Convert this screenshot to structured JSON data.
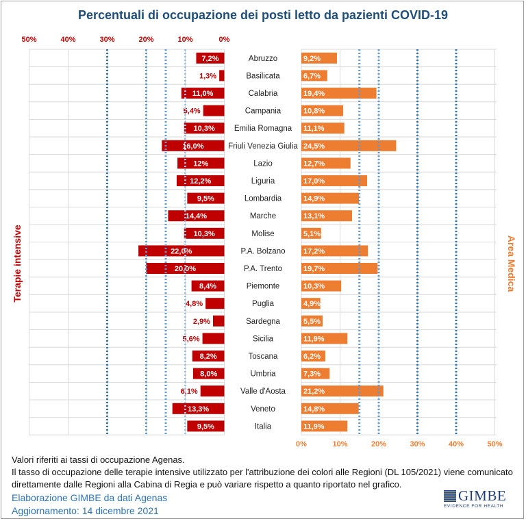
{
  "title": "Percentuali di occupazione dei posti letto da pazienti COVID-19",
  "chart_data": {
    "type": "bar",
    "orientation": "horizontal-butterfly",
    "title": "Percentuali di occupazione dei posti letto da pazienti COVID-19",
    "categories": [
      "Abruzzo",
      "Basilicata",
      "Calabria",
      "Campania",
      "Emilia Romagna",
      "Friuli Venezia Giulia",
      "Lazio",
      "Liguria",
      "Lombardia",
      "Marche",
      "Molise",
      "P.A. Bolzano",
      "P.A. Trento",
      "Piemonte",
      "Puglia",
      "Sardegna",
      "Sicilia",
      "Toscana",
      "Umbria",
      "Valle d'Aosta",
      "Veneto",
      "Italia"
    ],
    "series": [
      {
        "name": "Terapie intensive",
        "color": "#c00000",
        "values": [
          7.2,
          1.3,
          11.0,
          5.4,
          10.3,
          16.0,
          12,
          12.2,
          9.5,
          14.4,
          10.3,
          22.0,
          20.0,
          8.4,
          4.8,
          2.9,
          5.6,
          8.2,
          8.0,
          6.1,
          13.3,
          9.5
        ],
        "labels": [
          "7,2%",
          "1,3%",
          "11,0%",
          "5,4%",
          "10,3%",
          "16,0%",
          "12%",
          "12,2%",
          "9,5%",
          "14,4%",
          "10,3%",
          "22,0%",
          "20,0%",
          "8,4%",
          "4,8%",
          "2,9%",
          "5,6%",
          "8,2%",
          "8,0%",
          "6,1%",
          "13,3%",
          "9,5%"
        ]
      },
      {
        "name": "Area Medica",
        "color": "#ed7d31",
        "values": [
          9.2,
          6.7,
          19.4,
          10.8,
          11.1,
          24.5,
          12.7,
          17.0,
          14.9,
          13.1,
          5.1,
          17.2,
          19.7,
          10.3,
          4.9,
          5.5,
          11.9,
          6.2,
          7.3,
          21.2,
          14.8,
          11.9
        ],
        "labels": [
          "9,2%",
          "6,7%",
          "19,4%",
          "10,8%",
          "11,1%",
          "24,5%",
          "12,7%",
          "17,0%",
          "14,9%",
          "13,1%",
          "5,1%",
          "17,2%",
          "19,7%",
          "10,3%",
          "4,9%",
          "5,5%",
          "11,9%",
          "6,2%",
          "7,3%",
          "21,2%",
          "14,8%",
          "11,9%"
        ]
      }
    ],
    "left_axis": {
      "ticks": [
        "50%",
        "40%",
        "30%",
        "20%",
        "10%",
        "0%"
      ],
      "range": [
        0,
        50
      ]
    },
    "right_axis": {
      "ticks": [
        "0%",
        "10%",
        "20%",
        "30%",
        "40%",
        "50%"
      ],
      "range": [
        0,
        50
      ]
    },
    "thresholds": [
      {
        "value": 10,
        "color": "#9dc3e6"
      },
      {
        "value": 15,
        "color": "#5b9bd5"
      },
      {
        "value": 20,
        "color": "#5b9bd5"
      },
      {
        "value": 30,
        "color": "#2e75b6"
      },
      {
        "value": 40,
        "color": "#2e75b6"
      }
    ],
    "left_axis_title": "Terapie intensive",
    "right_axis_title": "Area Medica",
    "grid": true
  },
  "notes": {
    "line1": "Valori riferiti ai tassi di occupazione Agenas.",
    "line2": "Il tasso di occupazione delle terapie intensive utilizzato per l'attribuzione dei colori alle Regioni (DL 105/2021) viene comunicato",
    "line3": "direttamente dalle Regioni alla Cabina di Regia e può variare rispetto a quanto riportato nel grafico."
  },
  "credits": {
    "source": "Elaborazione GIMBE da dati Agenas",
    "updated": "Aggiornamento: 14 dicembre 2021"
  },
  "logo": {
    "word": "GIMBE",
    "tagline": "EVIDENCE FOR HEALTH"
  }
}
